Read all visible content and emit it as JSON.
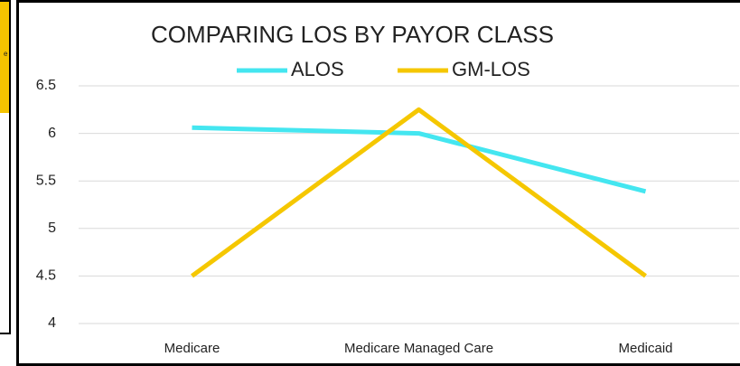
{
  "side_fragment": "e",
  "chart_data": {
    "type": "line",
    "title": "COMPARING LOS BY PAYOR CLASS",
    "categories": [
      "Medicare",
      "Medicare Managed Care",
      "Medicaid"
    ],
    "series": [
      {
        "name": "ALOS",
        "color": "#44e6f0",
        "values": [
          6.06,
          6.0,
          5.39
        ]
      },
      {
        "name": "GM-LOS",
        "color": "#f5c700",
        "values": [
          4.5,
          6.25,
          4.5
        ]
      }
    ],
    "ylim": [
      4,
      6.5
    ],
    "yticks": [
      4,
      4.5,
      5,
      5.5,
      6,
      6.5
    ],
    "grid": true,
    "legend": "top"
  }
}
